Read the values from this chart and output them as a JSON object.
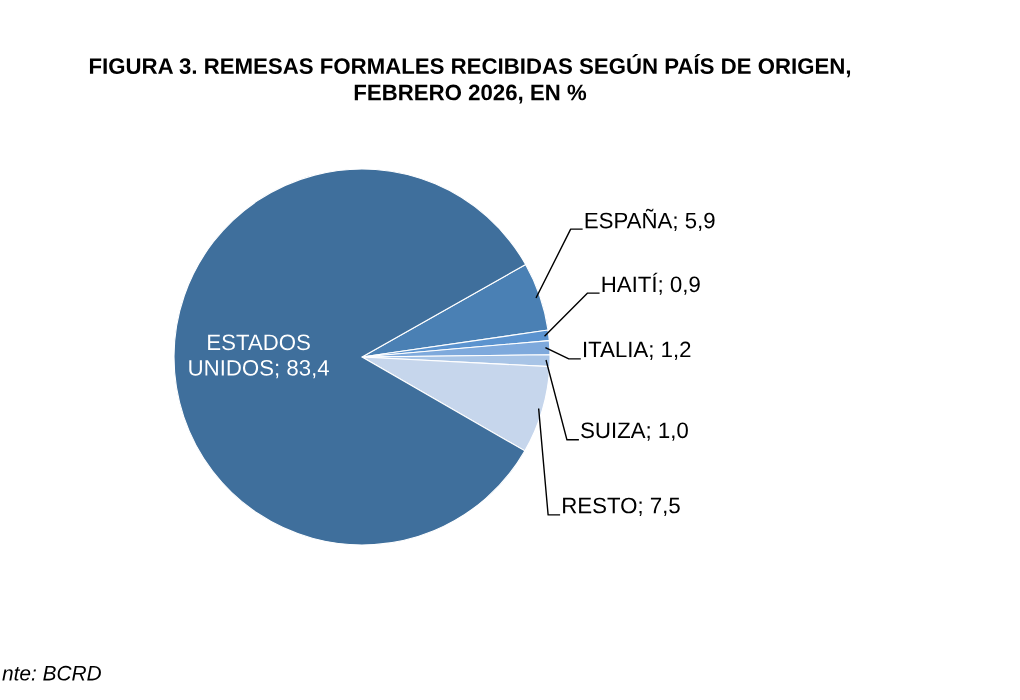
{
  "chart_data": {
    "type": "pie",
    "title": "FIGURA 3. REMESAS FORMALES RECIBIDAS SEGÚN PAÍS DE ORIGEN,\nFEBRERO 2026, EN %",
    "categories": [
      "ESPAÑA",
      "HAITÍ",
      "ITALIA",
      "SUIZA",
      "RESTO",
      "ESTADOS UNIDOS"
    ],
    "values": [
      5.9,
      0.9,
      1.2,
      1.0,
      7.5,
      83.4
    ],
    "value_labels": [
      "5,9",
      "0,9",
      "1,2",
      "1,0",
      "7,5",
      "83,4"
    ],
    "colors": [
      "#4a80b4",
      "#5b93cf",
      "#7ea9dc",
      "#a8c4e6",
      "#c6d6ec",
      "#3f6f9c"
    ],
    "annotations": [
      "nte: BCRD"
    ]
  }
}
